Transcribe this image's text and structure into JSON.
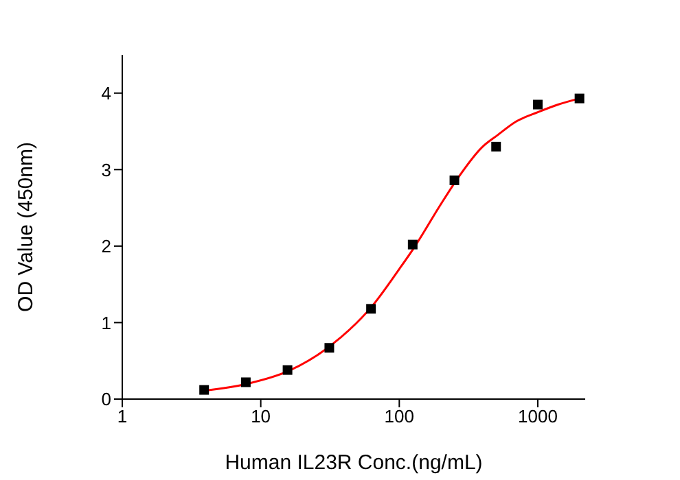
{
  "chart_data": {
    "type": "scatter",
    "xlabel": "Human IL23R Conc.(ng/mL)",
    "ylabel": "OD Value (450nm)",
    "log": "x",
    "xlim": [
      1,
      2200
    ],
    "xticks": [
      1,
      10,
      100,
      1000
    ],
    "ylim": [
      0,
      4.5
    ],
    "yticks": [
      0,
      1,
      2,
      3,
      4
    ],
    "grid": false,
    "legend": false,
    "series": [
      {
        "color": "#000000",
        "marker": "square",
        "x": [
          3.9,
          7.8,
          15.6,
          31.25,
          62.5,
          125,
          250,
          500,
          1000,
          2000
        ],
        "values": [
          0.12,
          0.22,
          0.38,
          0.67,
          1.18,
          2.02,
          2.86,
          3.3,
          3.85,
          3.93
        ]
      },
      {
        "type": "line",
        "color": "#ff0000",
        "marker": "none",
        "line_style": "solid",
        "x": [
          3.9,
          8,
          16,
          32,
          64,
          100,
          128,
          200,
          256,
          400,
          512,
          700,
          1000,
          1400,
          2000
        ],
        "values": [
          0.11,
          0.2,
          0.37,
          0.7,
          1.22,
          1.7,
          1.98,
          2.55,
          2.85,
          3.3,
          3.45,
          3.63,
          3.75,
          3.85,
          3.93
        ]
      }
    ]
  }
}
